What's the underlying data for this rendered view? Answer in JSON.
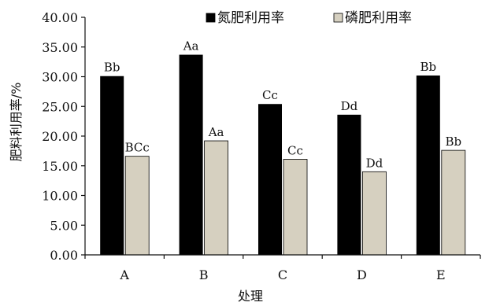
{
  "chart_data": {
    "type": "bar",
    "categories": [
      "A",
      "B",
      "C",
      "D",
      "E"
    ],
    "series": [
      {
        "name": "氮肥利用率",
        "color": "#000000",
        "values": [
          30.1,
          33.7,
          25.4,
          23.6,
          30.2
        ],
        "labels": [
          "Bb",
          "Aa",
          "Cc",
          "Dd",
          "Bb"
        ]
      },
      {
        "name": "磷肥利用率",
        "color": "#d6d0c0",
        "values": [
          16.6,
          19.2,
          16.1,
          14.0,
          17.6
        ],
        "labels": [
          "BCc",
          "Aa",
          "Cc",
          "Dd",
          "Bb"
        ]
      }
    ],
    "xlabel": "处理",
    "ylabel": "肥料利用率/%",
    "ylim": [
      0,
      40
    ],
    "yticks": [
      "0.00",
      "5.00",
      "10.00",
      "15.00",
      "20.00",
      "25.00",
      "30.00",
      "35.00",
      "40.00"
    ],
    "legend_position": "top-right",
    "grid": false
  }
}
